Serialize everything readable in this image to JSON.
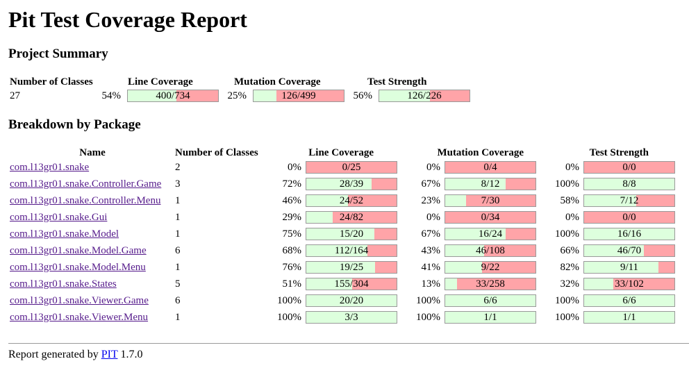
{
  "title": "Pit Test Coverage Report",
  "summary_heading": "Project Summary",
  "breakdown_heading": "Breakdown by Package",
  "summary": {
    "headers": [
      "Number of Classes",
      "Line Coverage",
      "Mutation Coverage",
      "Test Strength"
    ],
    "classes": "27",
    "line": {
      "pct": "54%",
      "label": "400/734",
      "fill": 0.54
    },
    "mutation": {
      "pct": "25%",
      "label": "126/499",
      "fill": 0.25
    },
    "strength": {
      "pct": "56%",
      "label": "126/226",
      "fill": 0.56
    }
  },
  "package_headers": [
    "Name",
    "Number of Classes",
    "Line Coverage",
    "Mutation Coverage",
    "Test Strength"
  ],
  "packages": [
    {
      "name": "com.l13gr01.snake",
      "classes": "2",
      "line": {
        "pct": "0%",
        "label": "0/25",
        "fill": 0
      },
      "mutation": {
        "pct": "0%",
        "label": "0/4",
        "fill": 0
      },
      "strength": {
        "pct": "0%",
        "label": "0/0",
        "fill": 0
      }
    },
    {
      "name": "com.l13gr01.snake.Controller.Game",
      "classes": "3",
      "line": {
        "pct": "72%",
        "label": "28/39",
        "fill": 0.72
      },
      "mutation": {
        "pct": "67%",
        "label": "8/12",
        "fill": 0.67
      },
      "strength": {
        "pct": "100%",
        "label": "8/8",
        "fill": 1
      }
    },
    {
      "name": "com.l13gr01.snake.Controller.Menu",
      "classes": "1",
      "line": {
        "pct": "46%",
        "label": "24/52",
        "fill": 0.46
      },
      "mutation": {
        "pct": "23%",
        "label": "7/30",
        "fill": 0.23
      },
      "strength": {
        "pct": "58%",
        "label": "7/12",
        "fill": 0.58
      }
    },
    {
      "name": "com.l13gr01.snake.Gui",
      "classes": "1",
      "line": {
        "pct": "29%",
        "label": "24/82",
        "fill": 0.29
      },
      "mutation": {
        "pct": "0%",
        "label": "0/34",
        "fill": 0
      },
      "strength": {
        "pct": "0%",
        "label": "0/0",
        "fill": 0
      }
    },
    {
      "name": "com.l13gr01.snake.Model",
      "classes": "1",
      "line": {
        "pct": "75%",
        "label": "15/20",
        "fill": 0.75
      },
      "mutation": {
        "pct": "67%",
        "label": "16/24",
        "fill": 0.67
      },
      "strength": {
        "pct": "100%",
        "label": "16/16",
        "fill": 1
      }
    },
    {
      "name": "com.l13gr01.snake.Model.Game",
      "classes": "6",
      "line": {
        "pct": "68%",
        "label": "112/164",
        "fill": 0.68
      },
      "mutation": {
        "pct": "43%",
        "label": "46/108",
        "fill": 0.43
      },
      "strength": {
        "pct": "66%",
        "label": "46/70",
        "fill": 0.66
      }
    },
    {
      "name": "com.l13gr01.snake.Model.Menu",
      "classes": "1",
      "line": {
        "pct": "76%",
        "label": "19/25",
        "fill": 0.76
      },
      "mutation": {
        "pct": "41%",
        "label": "9/22",
        "fill": 0.41
      },
      "strength": {
        "pct": "82%",
        "label": "9/11",
        "fill": 0.82
      }
    },
    {
      "name": "com.l13gr01.snake.States",
      "classes": "5",
      "line": {
        "pct": "51%",
        "label": "155/304",
        "fill": 0.51
      },
      "mutation": {
        "pct": "13%",
        "label": "33/258",
        "fill": 0.13
      },
      "strength": {
        "pct": "32%",
        "label": "33/102",
        "fill": 0.32
      }
    },
    {
      "name": "com.l13gr01.snake.Viewer.Game",
      "classes": "6",
      "line": {
        "pct": "100%",
        "label": "20/20",
        "fill": 1
      },
      "mutation": {
        "pct": "100%",
        "label": "6/6",
        "fill": 1
      },
      "strength": {
        "pct": "100%",
        "label": "6/6",
        "fill": 1
      }
    },
    {
      "name": "com.l13gr01.snake.Viewer.Menu",
      "classes": "1",
      "line": {
        "pct": "100%",
        "label": "3/3",
        "fill": 1
      },
      "mutation": {
        "pct": "100%",
        "label": "1/1",
        "fill": 1
      },
      "strength": {
        "pct": "100%",
        "label": "1/1",
        "fill": 1
      }
    }
  ],
  "footer": {
    "prefix": "Report generated by ",
    "link": "PIT",
    "version": " 1.7.0"
  },
  "colors": {
    "covered": "#ddffdd",
    "uncovered": "#ffa4a8",
    "border": "#999999"
  }
}
